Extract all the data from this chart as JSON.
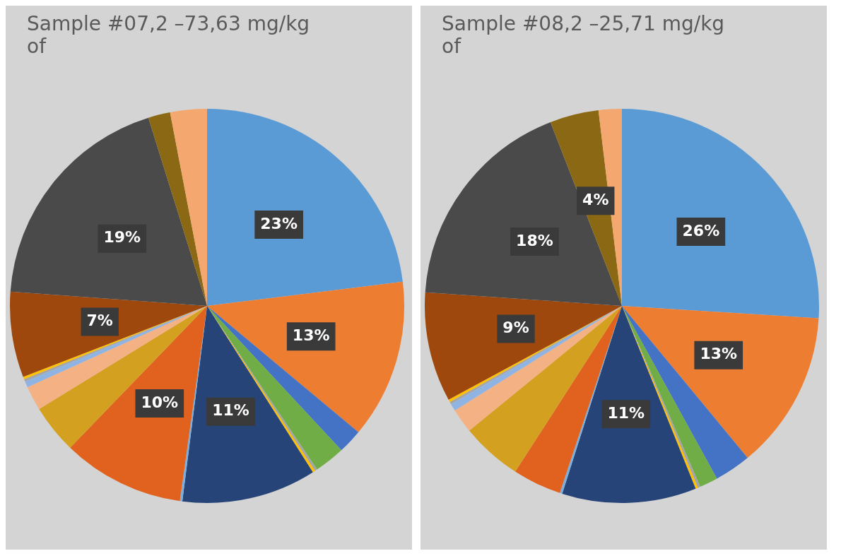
{
  "chart_data": [
    {
      "type": "pie",
      "title": "Sample #07,2 –73,63 mg/kg of",
      "categories": [
        null,
        null,
        null,
        null,
        null,
        null,
        null,
        null,
        null,
        null,
        null,
        null,
        null,
        null,
        null,
        null,
        null,
        null
      ],
      "values": [
        23,
        13,
        2,
        2.5,
        0.2,
        0.2,
        11,
        0.2,
        10,
        4,
        2,
        0.5,
        0.2,
        0.2,
        7,
        19,
        1.8,
        3
      ],
      "colors": [
        "#5b9bd5",
        "#ed7d31",
        "#4472c4",
        "#70ad47",
        "#a5a5a5",
        "#ffc000",
        "#264478",
        "#7cafdd",
        "#e0621e",
        "#d4a020",
        "#f4b183",
        "#8fb4e3",
        "#a5a5a5",
        "#ffc000",
        "#9e480e",
        "#4a4a4a",
        "#8b6914",
        "#f4a76f"
      ],
      "value_labels": [
        "23%",
        "13%",
        null,
        null,
        null,
        null,
        "11%",
        null,
        "10%",
        null,
        null,
        null,
        null,
        null,
        "7%",
        "19%",
        null,
        null
      ]
    },
    {
      "type": "pie",
      "title": "Sample #08,2 –25,71 mg/kg of",
      "categories": [
        null,
        null,
        null,
        null,
        null,
        null,
        null,
        null,
        null,
        null,
        null,
        null,
        null,
        null,
        null,
        null,
        null,
        null
      ],
      "values": [
        26,
        13,
        3,
        1.5,
        0.2,
        0.2,
        11,
        0.2,
        4,
        5,
        2,
        0.6,
        0.2,
        0.2,
        9,
        18,
        4,
        1.9
      ],
      "colors": [
        "#5b9bd5",
        "#ed7d31",
        "#4472c4",
        "#70ad47",
        "#a5a5a5",
        "#ffc000",
        "#264478",
        "#7cafdd",
        "#e0621e",
        "#d4a020",
        "#f4b183",
        "#8fb4e3",
        "#a5a5a5",
        "#ffc000",
        "#9e480e",
        "#4a4a4a",
        "#8b6914",
        "#f4a76f"
      ],
      "value_labels": [
        "26%",
        "13%",
        null,
        null,
        null,
        null,
        "11%",
        null,
        null,
        null,
        null,
        null,
        null,
        null,
        "9%",
        "18%",
        "4%",
        null
      ]
    }
  ]
}
